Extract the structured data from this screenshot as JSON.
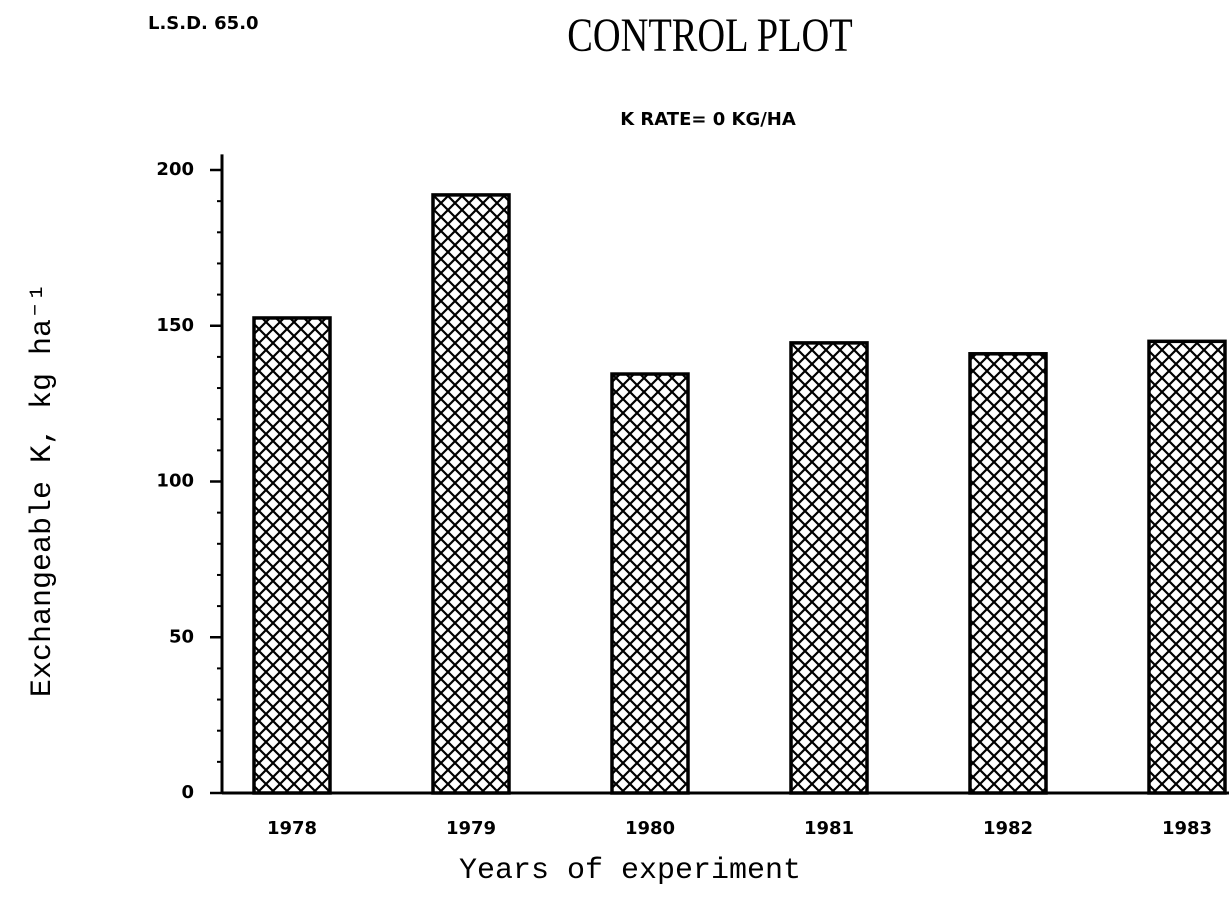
{
  "chart_data": {
    "type": "bar",
    "title": "CONTROL PLOT",
    "subtitle": "K RATE= 0 KG/HA",
    "annotation": "L.S.D. 65.0",
    "x_label": "Years of experiment",
    "y_label": "Exchangeable K,  kg ha⁻¹",
    "categories": [
      "1978",
      "1979",
      "1980",
      "1981",
      "1982",
      "1983"
    ],
    "values": [
      152.5,
      192,
      134.5,
      144.5,
      141,
      145
    ],
    "color": "#000000",
    "ylim": [
      0,
      205
    ],
    "yticks": [
      0,
      50,
      100,
      150,
      200
    ],
    "grid": false
  }
}
